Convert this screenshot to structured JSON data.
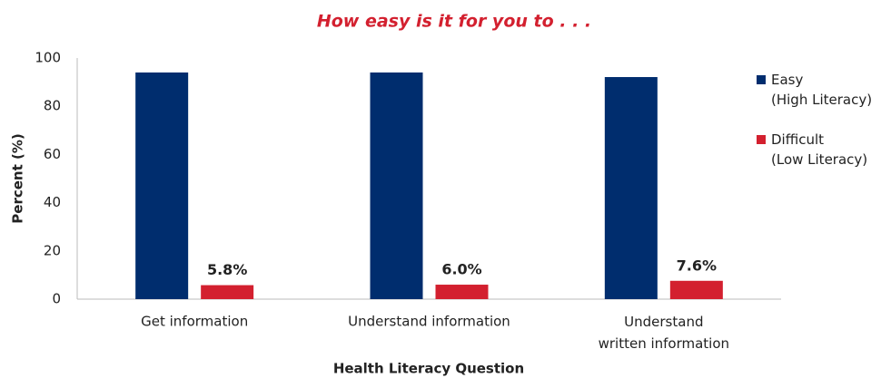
{
  "chart_data": {
    "type": "bar",
    "title": "How easy is it for you to . . .",
    "x_label": "Health Literacy  Question",
    "y_label": "Percent (%)",
    "categories": [
      "Get information",
      "Understand information",
      "Understand\nwritten information"
    ],
    "series": [
      {
        "name": "Easy\n(High Literacy)",
        "color": "#002d6e",
        "values": [
          94.0,
          94.0,
          92.1
        ]
      },
      {
        "name": "Difficult\n(Low Literacy)",
        "color": "#d3202f",
        "values": [
          5.8,
          6.0,
          7.6
        ],
        "value_labels": [
          "5.8%",
          "6.0%",
          "7.6%"
        ]
      }
    ],
    "ylim": [
      0,
      100
    ],
    "yticks": [
      0,
      20,
      40,
      60,
      80,
      100
    ],
    "grid": false,
    "legend": "right"
  }
}
